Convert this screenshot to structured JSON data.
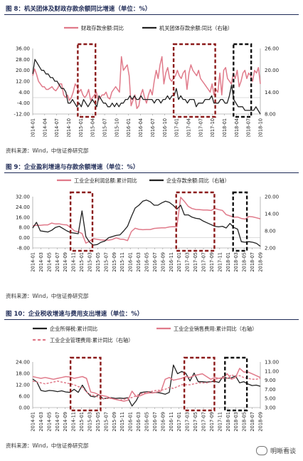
{
  "charts": [
    {
      "caption": "图 8：机关团体及财政存款余额同比增速（单位：%）",
      "source": "资料来源：Wind，中信证券研究部",
      "legend": [
        {
          "label": "财政存款余额:同比",
          "color": "#e07a8a"
        },
        {
          "label": "机关团体存款余额:同比（右轴）",
          "color": "#222222"
        }
      ]
    },
    {
      "caption": "图 9：企业盈利增速与存款余额增速（单位：%）",
      "source": "资料来源：Wind，中信证券研究部",
      "legend": [
        {
          "label": "工业企业利润总额:累计同比",
          "color": "#e07a8a"
        },
        {
          "label": "企业存款余额:同比（右轴）",
          "color": "#222222"
        }
      ]
    },
    {
      "caption": "图 10：企业税收增速与费用支出增速（单位：%）",
      "source": "资料来源：Wind，中信证券研究部",
      "legend": [
        {
          "label": "企业所得税:累计同比",
          "color": "#222222"
        },
        {
          "label": "工业企业销售费用:累计同比（右轴）",
          "color": "#e07a8a"
        },
        {
          "label": "工业企业管理费用:累计同比（右轴）",
          "color": "#e07a8a"
        }
      ]
    }
  ],
  "watermark": "明晰看谈",
  "chart_data": [
    {
      "type": "line",
      "x_ticks": [
        "2014-01",
        "2014-04",
        "2014-07",
        "2014-10",
        "2015-01",
        "2015-04",
        "2015-07",
        "2015-10",
        "2016-01",
        "2016-04",
        "2016-07",
        "2016-10",
        "2017-01",
        "2017-04",
        "2017-07",
        "2017-10",
        "2018-01",
        "2018-04",
        "2018-07",
        "2018-10"
      ],
      "left_axis": {
        "ticks": [
          "36.00",
          "28.00",
          "20.00",
          "12.00",
          "4.00",
          "-4.00",
          "-12.00"
        ],
        "min": -12,
        "max": 36
      },
      "right_axis": {
        "ticks": [
          "26.00",
          "20.00",
          "14.00",
          "8.00"
        ],
        "min": 8,
        "max": 26
      },
      "series": [
        {
          "name": "财政存款余额:同比",
          "axis": "left",
          "color": "#e07a8a",
          "values": [
            16,
            21,
            17,
            12,
            10,
            8,
            8,
            6,
            6,
            7,
            8,
            6,
            5,
            7,
            10,
            10,
            2,
            0,
            2,
            -2,
            0,
            4,
            10,
            8,
            4,
            6,
            2,
            0,
            2,
            6,
            -2,
            0,
            2,
            4,
            -2,
            0,
            2,
            2,
            4,
            0,
            -1,
            4,
            6,
            8,
            6,
            4,
            30,
            20,
            22,
            24,
            16,
            -6,
            -2,
            2,
            -8,
            -6,
            2,
            6,
            0,
            -4,
            2,
            6,
            2,
            12,
            20,
            14,
            24,
            30,
            10,
            18,
            22,
            14,
            12,
            14,
            16,
            20,
            16,
            14,
            18,
            20,
            6,
            18,
            24,
            20,
            18,
            16,
            20,
            14,
            12,
            10,
            8,
            6,
            4,
            10,
            2,
            6,
            4,
            18,
            2,
            20,
            22,
            14,
            12,
            10,
            18,
            14,
            20,
            8,
            12,
            18,
            20,
            14,
            18,
            16,
            12,
            20,
            18,
            22,
            10
          ]
        },
        {
          "name": "机关团体存款余额:同比",
          "axis": "right",
          "color": "#222222",
          "values": [
            19,
            23,
            22,
            21,
            20,
            20,
            19,
            19,
            18,
            18,
            17,
            17,
            16,
            15,
            15,
            14,
            11,
            11,
            12,
            11,
            10,
            11,
            10,
            12,
            11,
            10,
            11,
            12,
            11,
            10,
            13,
            12,
            11,
            11,
            10,
            10,
            11,
            10,
            11,
            10,
            11,
            11,
            12,
            12,
            13,
            12,
            13,
            12,
            12,
            13,
            12,
            12,
            12,
            12,
            12,
            11,
            12,
            12,
            11,
            12,
            12,
            13,
            12,
            13,
            13,
            15,
            12,
            13,
            12,
            12,
            11,
            12,
            12,
            12,
            10,
            11,
            11,
            11,
            12,
            12,
            12,
            13,
            11,
            11,
            11,
            12,
            12,
            11,
            11,
            13,
            16,
            12,
            11,
            10,
            10,
            10,
            9,
            9,
            9,
            9,
            9,
            10,
            9,
            8
          ]
        }
      ],
      "highlights": [
        {
          "from": "2015-01",
          "to": "2015-04",
          "color": "#8b1a1a"
        },
        {
          "from": "2017-01",
          "to": "2017-10",
          "color": "#8b1a1a"
        },
        {
          "from": "2018-04",
          "to": "2018-07",
          "color": "#111111"
        }
      ]
    },
    {
      "type": "line",
      "x_ticks": [
        "2014-01",
        "2014-03",
        "2014-05",
        "2014-07",
        "2014-09",
        "2014-11",
        "2015-01",
        "2015-03",
        "2015-05",
        "2015-07",
        "2015-09",
        "2015-11",
        "2016-01",
        "2016-03",
        "2016-05",
        "2016-07",
        "2016-09",
        "2016-11",
        "2017-01",
        "2017-03",
        "2017-05",
        "2017-07",
        "2017-09",
        "2017-11",
        "2018-01",
        "2018-03",
        "2018-05",
        "2018-07",
        "2018-09"
      ],
      "left_axis": {
        "ticks": [
          "32.00",
          "24.00",
          "16.00",
          "8.00",
          "0.00",
          "-8.00"
        ],
        "min": -8,
        "max": 32
      },
      "right_axis": {
        "ticks": [
          "20.00",
          "14.00",
          "8.00",
          "2.00"
        ],
        "min": 2,
        "max": 20
      },
      "series": [
        {
          "name": "工业企业利润总额:累计同比",
          "axis": "left",
          "color": "#e07a8a",
          "values": [
            9.4,
            9.6,
            9.6,
            10,
            10,
            11.4,
            10.7,
            10.8,
            10.2,
            10,
            7.9,
            5.3,
            4.6,
            3.3,
            -4.2,
            -2.7,
            -0.8,
            -1.3,
            -1.7,
            -1.9,
            -1.9,
            -1.4,
            -0.1,
            -1.1,
            -1.3,
            -2.3,
            4.8,
            7.4,
            6.5,
            6.2,
            6.4,
            6.4,
            7.2,
            7.5,
            7.7,
            7.7,
            8.4,
            8.6,
            8.5,
            31.5,
            28.3,
            24.4,
            22.7,
            22,
            21.9,
            21.6,
            21.6,
            21.2,
            22.8,
            21.9,
            21.3,
            18,
            17,
            16,
            16.1,
            15,
            14.5,
            16.5,
            16.2,
            15.5,
            14.7
          ]
        },
        {
          "name": "企业存款余额:同比",
          "axis": "right",
          "color": "#222222",
          "values": [
            9,
            11,
            8,
            7.8,
            7.6,
            8.2,
            9.2,
            9.6,
            8.8,
            8,
            7.4,
            7.2,
            7,
            15,
            6,
            4,
            3,
            3.2,
            4,
            4.4,
            5.6,
            6,
            6.4,
            6.6,
            8,
            9.6,
            13,
            16,
            17,
            18.4,
            18.8,
            18.2,
            17,
            17,
            17.8,
            18.4,
            18,
            17,
            15.6,
            17,
            13.6,
            13.6,
            12.8,
            12.4,
            12.2,
            11.4,
            10.8,
            10.2,
            9.6,
            9.4,
            9.6,
            9,
            10.6,
            9.2,
            8.6,
            4.2,
            4,
            4.2,
            4,
            3.6,
            2.6
          ]
        }
      ],
      "highlights": [
        {
          "from": "2014-11",
          "to": "2015-03",
          "color": "#8b1a1a"
        },
        {
          "from": "2017-01",
          "to": "2017-09",
          "color": "#8b1a1a"
        },
        {
          "from": "2018-03",
          "to": "2018-05",
          "color": "#111111"
        }
      ]
    },
    {
      "type": "line",
      "x_ticks": [
        "2014-01",
        "2014-03",
        "2014-05",
        "2014-07",
        "2014-09",
        "2014-11",
        "2015-01",
        "2015-03",
        "2015-05",
        "2015-07",
        "2015-09",
        "2015-11",
        "2016-01",
        "2016-03",
        "2016-05",
        "2016-07",
        "2016-09",
        "2016-11",
        "2017-01",
        "2017-03",
        "2017-05",
        "2017-07",
        "2017-09",
        "2017-11",
        "2018-01",
        "2018-03",
        "2018-05",
        "2018-07",
        "2018-09"
      ],
      "left_axis": {
        "ticks": [
          "24.00",
          "18.00",
          "12.00",
          "6.00",
          "0.00"
        ],
        "min": 0,
        "max": 24
      },
      "right_axis": {
        "ticks": [
          "13.00",
          "11.00",
          "9.00",
          "7.00",
          "5.00",
          "3.00"
        ],
        "min": 3,
        "max": 13
      },
      "series": [
        {
          "name": "企业所得税:累计同比",
          "axis": "left",
          "color": "#222222",
          "values": [
            15,
            13.5,
            9,
            8.5,
            9,
            8.8,
            8.4,
            8.8,
            8.2,
            8,
            9.6,
            8,
            11.8,
            8.4,
            6,
            5.6,
            6.8,
            4.6,
            5,
            5.2,
            4.8,
            5,
            4.8,
            5.2,
            0.8,
            3.6,
            7.8,
            8.2,
            8.4,
            7.8,
            8,
            7.6,
            7,
            8,
            22.4,
            17.8,
            19,
            18,
            14,
            18.2,
            13.6,
            13.6,
            13.4,
            13.6,
            13.8,
            13.2,
            16.4,
            15.4,
            15.6,
            16.6,
            13,
            13.6,
            12.4,
            11.6,
            11.8,
            11.2
          ]
        },
        {
          "name": "工业企业销售费用:累计同比",
          "axis": "right",
          "color": "#e07a8a",
          "values": [
            9.8,
            9.6,
            9.4,
            9.6,
            9.4,
            9.2,
            9.4,
            9.6,
            9.8,
            9.7,
            9.4,
            9.6,
            9.8,
            9.4,
            6.4,
            6.2,
            5.8,
            5.6,
            5.4,
            5,
            4.8,
            4.6,
            4.4,
            4.6,
            6.6,
            5.4,
            5.6,
            6,
            6.2,
            6.2,
            6.4,
            6.6,
            9.2,
            9.6,
            9,
            9.2,
            9.4,
            9.8,
            9.6,
            10,
            10.2,
            10.4,
            9.8,
            9.2,
            9.6,
            9.4,
            9.6,
            10.4,
            9.2,
            9.6,
            11.6,
            10.8,
            10.8,
            10.4,
            10,
            9.6
          ]
        },
        {
          "name": "工业企业管理费用:累计同比",
          "axis": "right",
          "color": "#e07a8a",
          "dashed": true,
          "values": [
            8.8,
            8.6,
            8.4,
            8.2,
            8.4,
            8.6,
            8.8,
            8.6,
            8.4,
            8.2,
            8,
            7.6,
            7.4,
            6.4,
            5.8,
            5.6,
            5.2,
            5,
            5,
            5,
            4.8,
            4.6,
            4.8,
            5,
            5.2,
            5.6,
            6,
            6.2,
            6.4,
            6.6,
            6.8,
            6.8,
            7,
            7.4,
            7.2,
            7.6,
            8,
            8,
            8,
            8.2,
            8.4,
            8.4,
            8.4,
            8.6,
            9.2,
            9.4,
            9.4,
            9.4,
            10.2,
            9.8,
            10,
            9.6,
            9.4,
            9.2,
            9.2,
            9.4
          ]
        }
      ],
      "highlights": [
        {
          "from": "2014-11",
          "to": "2015-05",
          "color": "#8b1a1a"
        },
        {
          "from": "2017-03",
          "to": "2017-09",
          "color": "#8b1a1a"
        },
        {
          "from": "2018-01",
          "to": "2018-05",
          "color": "#111111"
        }
      ]
    }
  ]
}
